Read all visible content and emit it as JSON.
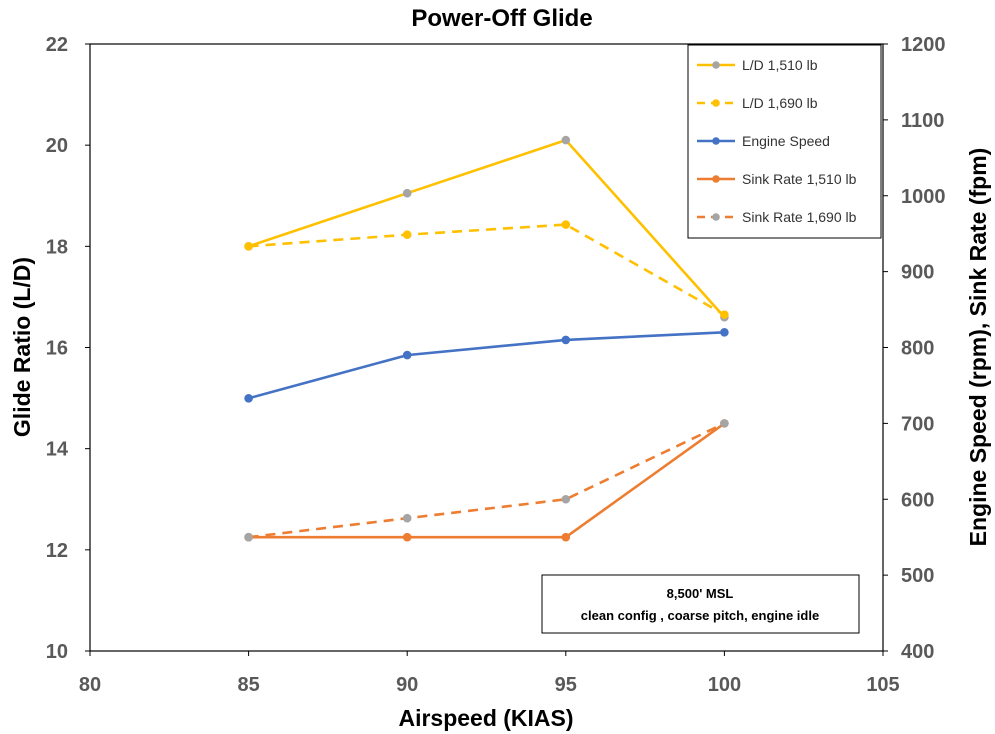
{
  "chart_data": {
    "type": "line",
    "title": "Power-Off Glide",
    "xlabel": "Airspeed (KIAS)",
    "ylabel": "Glide Ratio (L/D)",
    "y2label": "Engine Speed (rpm), Sink Rate (fpm)",
    "xlim": [
      80,
      105
    ],
    "ylim": [
      10,
      22
    ],
    "y2lim": [
      400,
      1200
    ],
    "xticks": [
      "80",
      "85",
      "90",
      "95",
      "100",
      "105"
    ],
    "yticks": [
      "10",
      "12",
      "14",
      "16",
      "18",
      "20",
      "22"
    ],
    "y2ticks": [
      "400",
      "500",
      "600",
      "700",
      "800",
      "900",
      "1000",
      "1100",
      "1200"
    ],
    "grid": false,
    "legend_position": "top-right",
    "annotation": [
      "8,500' MSL",
      "clean config , coarse pitch, engine idle"
    ],
    "series": [
      {
        "name": "L/D 1,510 lb",
        "axis": "left",
        "color": "#FFC000",
        "marker_color": "#A5A5A5",
        "dashed": false,
        "x": [
          85,
          90,
          95,
          100
        ],
        "y": [
          18.0,
          19.05,
          20.1,
          16.6
        ]
      },
      {
        "name": "L/D 1,690 lb",
        "axis": "left",
        "color": "#FFC000",
        "marker_color": "#FFC000",
        "dashed": true,
        "x": [
          85,
          90,
          95,
          100
        ],
        "y": [
          18.0,
          18.23,
          18.43,
          16.65
        ]
      },
      {
        "name": "Engine Speed",
        "axis": "right",
        "color": "#4472C4",
        "marker_color": "#4472C4",
        "dashed": false,
        "x": [
          85,
          90,
          95,
          100
        ],
        "y": [
          733,
          790,
          810,
          820
        ]
      },
      {
        "name": "Sink Rate 1,510 lb",
        "axis": "right",
        "color": "#ED7D31",
        "marker_color": "#ED7D31",
        "dashed": false,
        "x": [
          85,
          90,
          95,
          100
        ],
        "y": [
          550,
          550,
          550,
          700
        ]
      },
      {
        "name": "Sink Rate 1,690 lb",
        "axis": "right",
        "color": "#ED7D31",
        "marker_color": "#A5A5A5",
        "dashed": true,
        "x": [
          85,
          90,
          95,
          100
        ],
        "y": [
          550,
          575,
          600,
          700
        ]
      }
    ]
  }
}
